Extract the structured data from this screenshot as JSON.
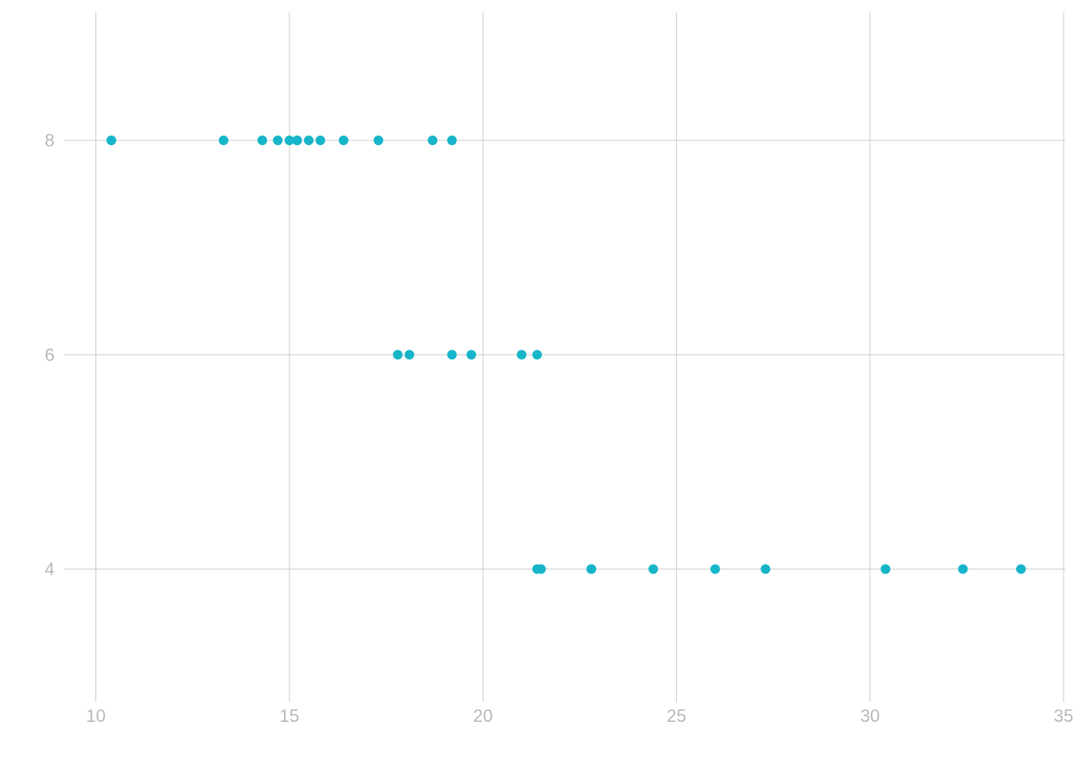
{
  "chart_data": {
    "type": "scatter",
    "title": "",
    "xlabel": "",
    "ylabel": "",
    "xlim": [
      10,
      35
    ],
    "ylim": [
      3,
      9
    ],
    "xticks": [
      10,
      15,
      20,
      25,
      30,
      35
    ],
    "yticks": [
      4,
      6,
      8
    ],
    "grid": true,
    "point_color": "#17b5c9",
    "grid_color": "#cccccc",
    "tick_label_color": "#b8b8b8",
    "points": [
      {
        "x": 10.4,
        "y": 8
      },
      {
        "x": 10.4,
        "y": 8
      },
      {
        "x": 13.3,
        "y": 8
      },
      {
        "x": 14.3,
        "y": 8
      },
      {
        "x": 14.7,
        "y": 8
      },
      {
        "x": 15.0,
        "y": 8
      },
      {
        "x": 15.2,
        "y": 8
      },
      {
        "x": 15.2,
        "y": 8
      },
      {
        "x": 15.5,
        "y": 8
      },
      {
        "x": 15.8,
        "y": 8
      },
      {
        "x": 16.4,
        "y": 8
      },
      {
        "x": 17.3,
        "y": 8
      },
      {
        "x": 18.7,
        "y": 8
      },
      {
        "x": 19.2,
        "y": 8
      },
      {
        "x": 17.8,
        "y": 6
      },
      {
        "x": 18.1,
        "y": 6
      },
      {
        "x": 19.2,
        "y": 6
      },
      {
        "x": 19.7,
        "y": 6
      },
      {
        "x": 21.0,
        "y": 6
      },
      {
        "x": 21.4,
        "y": 6
      },
      {
        "x": 21.4,
        "y": 4
      },
      {
        "x": 21.5,
        "y": 4
      },
      {
        "x": 22.8,
        "y": 4
      },
      {
        "x": 22.8,
        "y": 4
      },
      {
        "x": 24.4,
        "y": 4
      },
      {
        "x": 26.0,
        "y": 4
      },
      {
        "x": 27.3,
        "y": 4
      },
      {
        "x": 30.4,
        "y": 4
      },
      {
        "x": 30.4,
        "y": 4
      },
      {
        "x": 32.4,
        "y": 4
      },
      {
        "x": 33.9,
        "y": 4
      }
    ]
  }
}
